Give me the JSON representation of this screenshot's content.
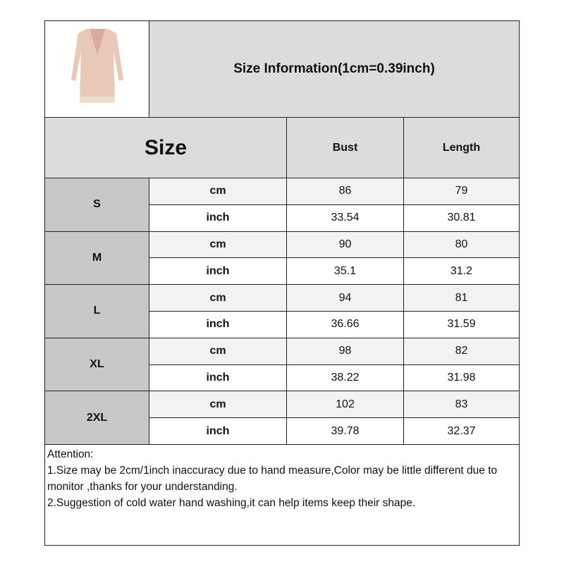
{
  "title": "Size Information(1cm=0.39inch)",
  "product_image": "pink-sequin-long-sleeve-dress",
  "header": {
    "size": "Size",
    "bust": "Bust",
    "length": "Length"
  },
  "sizes": [
    {
      "name": "S",
      "cm": {
        "unit": "cm",
        "bust": "86",
        "length": "79"
      },
      "inch": {
        "unit": "inch",
        "bust": "33.54",
        "length": "30.81"
      }
    },
    {
      "name": "M",
      "cm": {
        "unit": "cm",
        "bust": "90",
        "length": "80"
      },
      "inch": {
        "unit": "inch",
        "bust": "35.1",
        "length": "31.2"
      }
    },
    {
      "name": "L",
      "cm": {
        "unit": "cm",
        "bust": "94",
        "length": "81"
      },
      "inch": {
        "unit": "inch",
        "bust": "36.66",
        "length": "31.59"
      }
    },
    {
      "name": "XL",
      "cm": {
        "unit": "cm",
        "bust": "98",
        "length": "82"
      },
      "inch": {
        "unit": "inch",
        "bust": "38.22",
        "length": "31.98"
      }
    },
    {
      "name": "2XL",
      "cm": {
        "unit": "cm",
        "bust": "102",
        "length": "83"
      },
      "inch": {
        "unit": "inch",
        "bust": "39.78",
        "length": "32.37"
      }
    }
  ],
  "notes": [
    "Attention:",
    "1.Size may be 2cm/1inch inaccuracy due to hand measure,Color may be little different due to monitor ,thanks for your understanding.",
    "2.Suggestion of cold water hand washing,it can help items keep their shape."
  ],
  "colors": {
    "header_bg": "#dcdcdc",
    "size_bg": "#c8c8c8",
    "cm_bg": "#f2f2f2",
    "border": "#222222"
  }
}
